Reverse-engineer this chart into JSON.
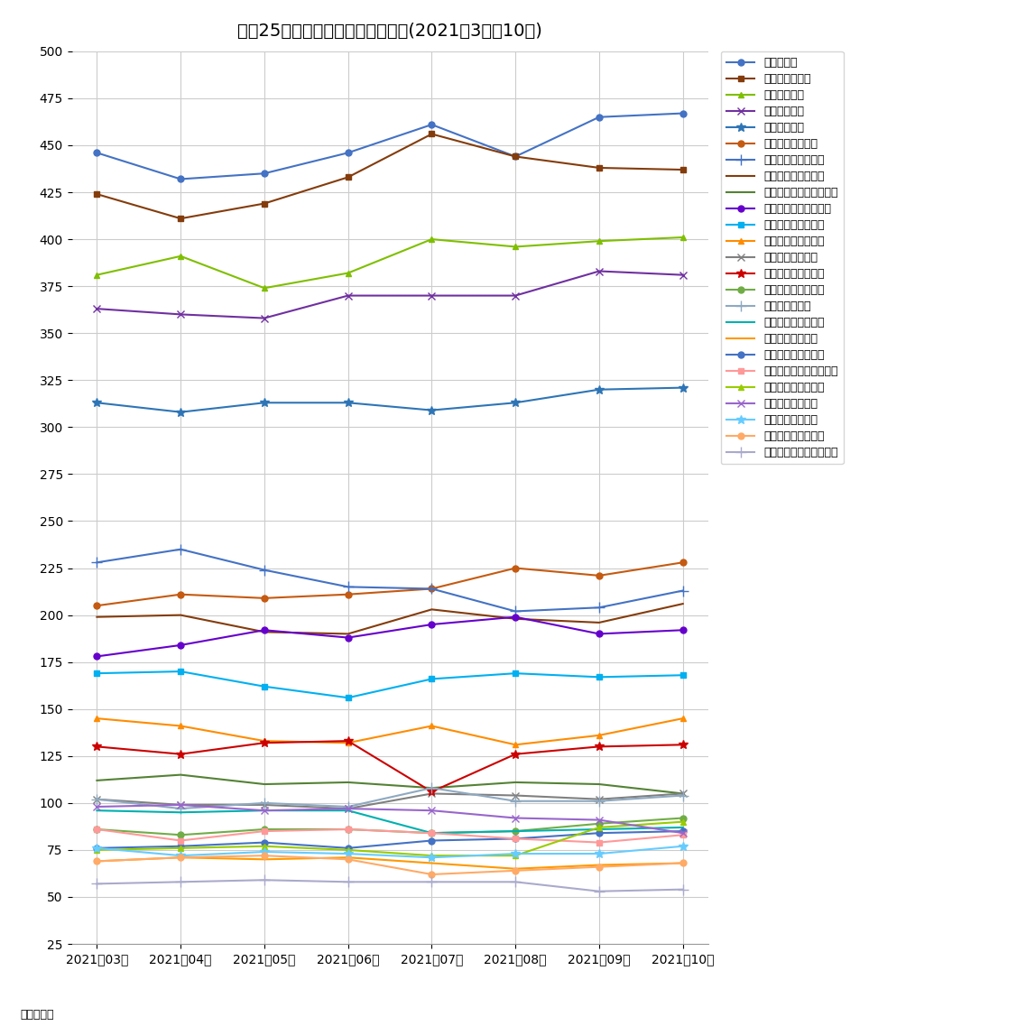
{
  "title": "主要25市区マンション坪単価推移(2021年3月～10月)",
  "xlabel_note": "単位：万円",
  "months": [
    "2021年03月",
    "2021年04月",
    "2021年05月",
    "2021年06月",
    "2021年07月",
    "2021年08月",
    "2021年09月",
    "2021年10月"
  ],
  "ylim": [
    25,
    500
  ],
  "yticks": [
    25,
    50,
    75,
    100,
    125,
    150,
    175,
    200,
    225,
    250,
    275,
    300,
    325,
    350,
    375,
    400,
    425,
    450,
    475,
    500
  ],
  "series": [
    {
      "name": "東京都港区",
      "color": "#4472C4",
      "marker": "o",
      "markersize": 5,
      "linewidth": 1.5,
      "values": [
        446,
        432,
        435,
        446,
        461,
        444,
        465,
        467
      ]
    },
    {
      "name": "東京都千代田区",
      "color": "#843C0C",
      "marker": "s",
      "markersize": 5,
      "linewidth": 1.5,
      "values": [
        424,
        411,
        419,
        433,
        456,
        444,
        438,
        437
      ]
    },
    {
      "name": "東京都渋谷区",
      "color": "#7fBF00",
      "marker": "^",
      "markersize": 5,
      "linewidth": 1.5,
      "values": [
        381,
        391,
        374,
        382,
        400,
        396,
        399,
        401
      ]
    },
    {
      "name": "東京都中央区",
      "color": "#7030A0",
      "marker": "x",
      "markersize": 6,
      "linewidth": 1.5,
      "values": [
        363,
        360,
        358,
        370,
        370,
        370,
        383,
        381
      ]
    },
    {
      "name": "東京都新宿区",
      "color": "#2E75B6",
      "marker": "*",
      "markersize": 7,
      "linewidth": 1.5,
      "values": [
        313,
        308,
        313,
        313,
        309,
        313,
        320,
        321
      ]
    },
    {
      "name": "大阪府大阪市北区",
      "color": "#C55A11",
      "marker": "o",
      "markersize": 5,
      "linewidth": 1.5,
      "values": [
        205,
        211,
        209,
        211,
        214,
        225,
        221,
        228
      ]
    },
    {
      "name": "京都府京都市中京区",
      "color": "#4472C4",
      "marker": "+",
      "markersize": 8,
      "linewidth": 1.5,
      "values": [
        228,
        235,
        224,
        215,
        214,
        202,
        204,
        213
      ]
    },
    {
      "name": "神奈川県横浜市中区",
      "color": "#843C0C",
      "marker": "None",
      "markersize": 5,
      "linewidth": 1.5,
      "values": [
        199,
        200,
        191,
        190,
        203,
        198,
        196,
        206
      ]
    },
    {
      "name": "埼玉県さいたま市浦和区",
      "color": "#548235",
      "marker": "None",
      "markersize": 5,
      "linewidth": 1.5,
      "values": [
        112,
        115,
        110,
        111,
        108,
        111,
        110,
        105
      ]
    },
    {
      "name": "神奈川県川崎市川崎区",
      "color": "#6600CC",
      "marker": "o",
      "markersize": 5,
      "linewidth": 1.5,
      "values": [
        178,
        184,
        192,
        188,
        195,
        199,
        190,
        192
      ]
    },
    {
      "name": "兵庫県神戸市中央区",
      "color": "#00B0F0",
      "marker": "s",
      "markersize": 5,
      "linewidth": 1.5,
      "values": [
        169,
        170,
        162,
        156,
        166,
        169,
        167,
        168
      ]
    },
    {
      "name": "愛知県名古屋市中区",
      "color": "#FF8C00",
      "marker": "^",
      "markersize": 5,
      "linewidth": 1.5,
      "values": [
        145,
        141,
        133,
        132,
        141,
        131,
        136,
        145
      ]
    },
    {
      "name": "広島県広島市中区",
      "color": "#808080",
      "marker": "x",
      "markersize": 6,
      "linewidth": 1.5,
      "values": [
        102,
        99,
        99,
        97,
        105,
        104,
        102,
        105
      ]
    },
    {
      "name": "福岡県福岡市中央区",
      "color": "#CC0000",
      "marker": "*",
      "markersize": 7,
      "linewidth": 1.5,
      "values": [
        130,
        126,
        132,
        133,
        106,
        126,
        130,
        131
      ]
    },
    {
      "name": "千葉県千葉市中央区",
      "color": "#70AD47",
      "marker": "o",
      "markersize": 5,
      "linewidth": 1.5,
      "values": [
        86,
        83,
        86,
        86,
        84,
        85,
        89,
        92
      ]
    },
    {
      "name": "大阪府堺市堺区",
      "color": "#8EA9C1",
      "marker": "+",
      "markersize": 8,
      "linewidth": 1.5,
      "values": [
        102,
        97,
        100,
        98,
        108,
        101,
        101,
        104
      ]
    },
    {
      "name": "宮城県仙台市青葉区",
      "color": "#00B0B0",
      "marker": "None",
      "markersize": 5,
      "linewidth": 1.5,
      "values": [
        96,
        95,
        96,
        96,
        84,
        85,
        86,
        87
      ]
    },
    {
      "name": "岡山県岡山市北区",
      "color": "#FF9900",
      "marker": "None",
      "markersize": 5,
      "linewidth": 1.5,
      "values": [
        69,
        71,
        70,
        71,
        68,
        65,
        67,
        68
      ]
    },
    {
      "name": "北海道札幌市中央区",
      "color": "#4472C4",
      "marker": "o",
      "markersize": 5,
      "linewidth": 1.5,
      "values": [
        76,
        77,
        79,
        76,
        80,
        81,
        84,
        85
      ]
    },
    {
      "name": "神奈川県相模原市中央区",
      "color": "#FF9999",
      "marker": "s",
      "markersize": 5,
      "linewidth": 1.5,
      "values": [
        86,
        80,
        85,
        86,
        84,
        81,
        79,
        83
      ]
    },
    {
      "name": "新潟県新潟市中央区",
      "color": "#99CC00",
      "marker": "^",
      "markersize": 5,
      "linewidth": 1.5,
      "values": [
        75,
        76,
        77,
        75,
        72,
        72,
        87,
        90
      ]
    },
    {
      "name": "静岡県静岡市葵区",
      "color": "#9966CC",
      "marker": "x",
      "markersize": 6,
      "linewidth": 1.5,
      "values": [
        98,
        99,
        96,
        97,
        96,
        92,
        91,
        84
      ]
    },
    {
      "name": "静岡県浜松市中区",
      "color": "#66CCFF",
      "marker": "*",
      "markersize": 7,
      "linewidth": 1.5,
      "values": [
        76,
        72,
        74,
        73,
        71,
        73,
        73,
        77
      ]
    },
    {
      "name": "熊本県熊本市中央区",
      "color": "#FFAA66",
      "marker": "o",
      "markersize": 5,
      "linewidth": 1.5,
      "values": [
        69,
        71,
        72,
        70,
        62,
        64,
        66,
        68
      ]
    },
    {
      "name": "福岡県北九州市小倉北区",
      "color": "#AAAACC",
      "marker": "+",
      "markersize": 8,
      "linewidth": 1.5,
      "values": [
        57,
        58,
        59,
        58,
        58,
        58,
        53,
        54
      ]
    }
  ]
}
